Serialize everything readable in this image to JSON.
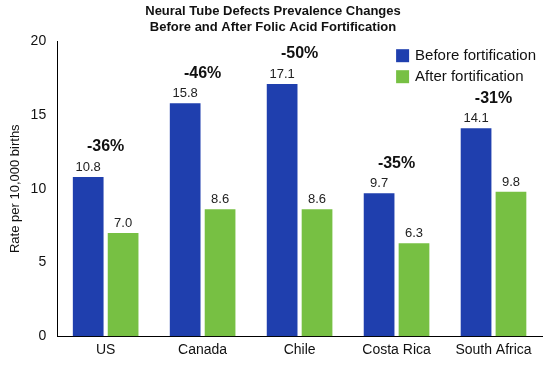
{
  "chart_data": {
    "type": "bar",
    "title": [
      "Neural Tube Defects Prevalence Changes",
      "Before and After Folic Acid Fortification"
    ],
    "y_label": "Rate per 10,000 births",
    "categories": [
      "US",
      "Canada",
      "Chile",
      "Costa Rica",
      "South Africa"
    ],
    "series": [
      {
        "name": "Before fortification",
        "color": "#1f3fae",
        "values": [
          10.8,
          15.8,
          17.1,
          9.7,
          14.1
        ]
      },
      {
        "name": "After fortification",
        "color": "#77c043",
        "values": [
          7.0,
          8.6,
          8.6,
          6.3,
          9.8
        ],
        "value_labels": [
          "7.0",
          "8.6",
          "8.6",
          "6.3",
          "9.8"
        ]
      }
    ],
    "annotations": [
      "-36%",
      "-46%",
      "-50%",
      "-35%",
      "-31%"
    ],
    "ylim": [
      0,
      20
    ],
    "yticks": [
      0,
      5,
      10,
      15,
      20
    ],
    "grid": false,
    "legend": "top-right",
    "data_labels": true
  }
}
